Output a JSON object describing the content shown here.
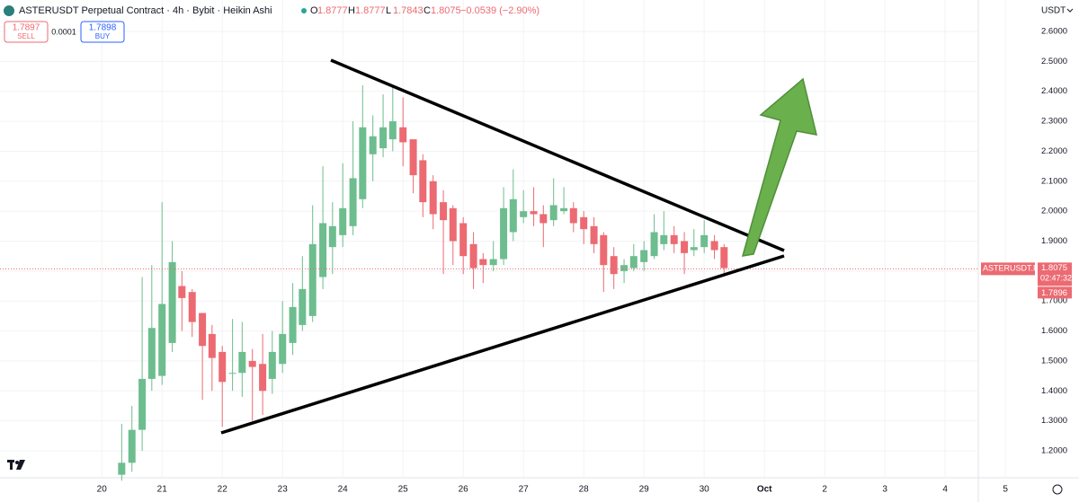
{
  "header": {
    "title": "ASTERUSDT Perpetual Contract · 4h · Bybit · Heikin Ashi",
    "ohlc": [
      {
        "label": "O",
        "value": "1.8777"
      },
      {
        "label": "H",
        "value": "1.8777"
      },
      {
        "label": "L",
        "value": "1.7843"
      },
      {
        "label": "C",
        "value": "1.8075"
      }
    ],
    "change": "−0.0539 (−2.90%)",
    "sell": {
      "price": "1.7897",
      "label": "SELL"
    },
    "spread": "0.0001",
    "buy": {
      "price": "1.7898",
      "label": "BUY"
    },
    "currency": "USDT"
  },
  "chart_data": {
    "type": "candlestick",
    "up_color": "#6dbd8e",
    "down_color": "#ec6a72",
    "x": [
      20.33,
      20.5,
      20.67,
      20.83,
      21,
      21.17,
      21.33,
      21.5,
      21.67,
      21.83,
      22,
      22.17,
      22.33,
      22.5,
      22.67,
      22.83,
      23,
      23.17,
      23.33,
      23.5,
      23.67,
      23.83,
      24,
      24.17,
      24.33,
      24.5,
      24.67,
      24.83,
      25,
      25.17,
      25.33,
      25.5,
      25.67,
      25.83,
      26,
      26.17,
      26.33,
      26.5,
      26.67,
      26.83,
      27,
      27.17,
      27.33,
      27.5,
      27.67,
      27.83,
      28,
      28.17,
      28.33,
      28.5,
      28.67,
      28.83,
      29,
      29.17,
      29.33,
      29.5,
      29.67,
      29.83,
      30,
      30.17,
      30.33
    ],
    "open": [
      1.12,
      1.16,
      1.27,
      1.44,
      1.45,
      1.56,
      1.75,
      1.73,
      1.66,
      1.59,
      1.53,
      1.46,
      1.46,
      1.5,
      1.49,
      1.44,
      1.49,
      1.56,
      1.62,
      1.65,
      1.78,
      1.88,
      1.92,
      1.95,
      2.04,
      2.19,
      2.21,
      2.24,
      2.28,
      2.24,
      2.17,
      2.1,
      2.03,
      2.01,
      1.96,
      1.89,
      1.84,
      1.82,
      1.84,
      1.93,
      1.98,
      2.0,
      1.99,
      1.97,
      2.0,
      2.01,
      1.98,
      1.95,
      1.92,
      1.85,
      1.8,
      1.81,
      1.83,
      1.85,
      1.89,
      1.92,
      1.9,
      1.87,
      1.88,
      1.9,
      1.88
    ],
    "high": [
      1.29,
      1.35,
      1.78,
      1.82,
      2.03,
      1.9,
      1.8,
      1.74,
      1.66,
      1.62,
      1.55,
      1.64,
      1.63,
      1.54,
      1.59,
      1.6,
      1.7,
      1.76,
      1.85,
      2.02,
      2.15,
      2.03,
      2.16,
      2.3,
      2.42,
      2.32,
      2.39,
      2.42,
      2.38,
      2.24,
      2.19,
      2.12,
      2.07,
      2.02,
      1.98,
      1.93,
      1.86,
      1.9,
      2.08,
      2.14,
      2.07,
      2.08,
      2.02,
      2.11,
      2.08,
      2.03,
      2.0,
      1.98,
      1.93,
      1.88,
      1.84,
      1.89,
      1.9,
      1.99,
      2.0,
      1.95,
      1.93,
      1.94,
      1.97,
      1.92,
      1.89
    ],
    "low": [
      1.1,
      1.13,
      1.2,
      1.4,
      1.42,
      1.53,
      1.6,
      1.58,
      1.37,
      1.4,
      1.28,
      1.4,
      1.38,
      1.3,
      1.32,
      1.39,
      1.46,
      1.52,
      1.6,
      1.63,
      1.74,
      1.79,
      1.88,
      1.92,
      2.01,
      2.1,
      2.18,
      2.2,
      2.15,
      2.06,
      1.98,
      1.94,
      1.79,
      1.82,
      1.79,
      1.74,
      1.76,
      1.8,
      1.82,
      1.9,
      1.96,
      1.95,
      1.88,
      1.95,
      1.99,
      1.93,
      1.89,
      1.86,
      1.73,
      1.74,
      1.76,
      1.8,
      1.8,
      1.84,
      1.87,
      1.86,
      1.79,
      1.85,
      1.86,
      1.84,
      1.79
    ],
    "close": [
      1.16,
      1.27,
      1.44,
      1.61,
      1.69,
      1.83,
      1.71,
      1.63,
      1.55,
      1.51,
      1.43,
      1.46,
      1.53,
      1.48,
      1.4,
      1.53,
      1.59,
      1.68,
      1.74,
      1.89,
      1.96,
      1.95,
      2.01,
      2.11,
      2.28,
      2.25,
      2.28,
      2.3,
      2.23,
      2.12,
      2.03,
      1.99,
      1.97,
      1.9,
      1.85,
      1.81,
      1.82,
      1.84,
      2.01,
      2.04,
      2.0,
      1.99,
      1.96,
      2.02,
      2.01,
      1.96,
      1.94,
      1.89,
      1.82,
      1.79,
      1.82,
      1.85,
      1.87,
      1.93,
      1.92,
      1.89,
      1.86,
      1.88,
      1.92,
      1.87,
      1.81
    ],
    "xlim": [
      18.31,
      34.55
    ],
    "xticks": [
      20,
      21,
      22,
      23,
      24,
      25,
      26,
      27,
      28,
      29,
      30,
      {
        "value": 31,
        "label": "Oct"
      },
      {
        "value": 32,
        "label": "2"
      },
      {
        "value": 33,
        "label": "3"
      },
      {
        "value": 34,
        "label": "4"
      },
      {
        "value": 35,
        "label": "5"
      }
    ],
    "ylim": [
      1.11,
      2.705
    ],
    "yticks": [
      {
        "value": 1.2,
        "label": "1.2000"
      },
      {
        "value": 1.3,
        "label": "1.3000"
      },
      {
        "value": 1.4,
        "label": "1.4000"
      },
      {
        "value": 1.5,
        "label": "1.5000"
      },
      {
        "value": 1.6,
        "label": "1.6000"
      },
      {
        "value": 1.7,
        "label": "1.7000"
      },
      {
        "value": 1.8,
        "label": "1.8000"
      },
      {
        "value": 1.9,
        "label": "1.9000"
      },
      {
        "value": 2.0,
        "label": "2.0000"
      },
      {
        "value": 2.1,
        "label": "2.1000"
      },
      {
        "value": 2.2,
        "label": "2.2000"
      },
      {
        "value": 2.3,
        "label": "2.3000"
      },
      {
        "value": 2.4,
        "label": "2.4000"
      },
      {
        "value": 2.5,
        "label": "2.5000"
      },
      {
        "value": 2.6,
        "label": "2.6000"
      }
    ],
    "last_price": 1.8075,
    "symbol_label": "ASTERUSDT.P",
    "countdown": "02:47:32",
    "bid_price": 1.7896
  }
}
